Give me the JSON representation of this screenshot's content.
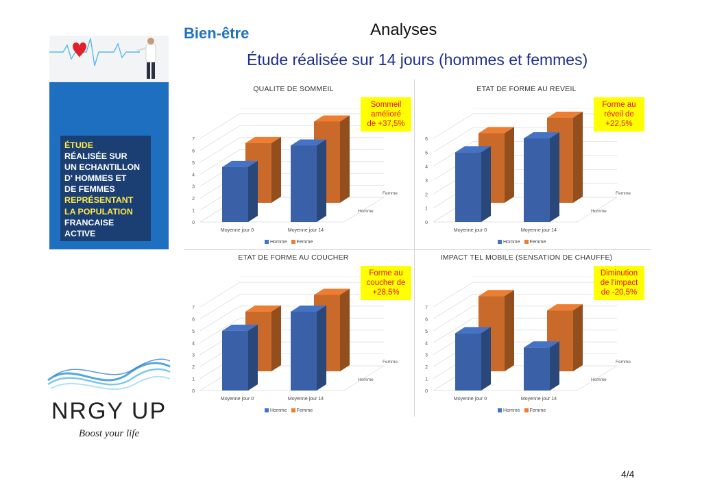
{
  "header": {
    "brand": "Bien-être",
    "title": "Analyses",
    "subtitle": "Étude réalisée sur 14 jours (hommes et femmes)"
  },
  "sidebar": {
    "lines": [
      {
        "text": "ÉTUDE",
        "color": "yellow"
      },
      {
        "text": "RÉALISÉE SUR",
        "color": "white"
      },
      {
        "text": "UN ECHANTILLON",
        "color": "white"
      },
      {
        "text": "D' HOMMES ET",
        "color": "white"
      },
      {
        "text": "DE FEMMES",
        "color": "white"
      },
      {
        "text": "REPRÉSENTANT",
        "color": "yellow"
      },
      {
        "text": "LA POPULATION",
        "color": "yellow"
      },
      {
        "text": "FRANCAISE",
        "color": "white"
      },
      {
        "text": "ACTIVE",
        "color": "white"
      }
    ],
    "banner_icons": [
      "heart-icon",
      "doctor-figure"
    ]
  },
  "logo": {
    "name": "NRGY UP",
    "tagline": "Boost your life"
  },
  "footer": {
    "page": "4/4"
  },
  "colors": {
    "homme": "#4472c4",
    "femme": "#ed7d31",
    "note_bg": "#ffff00",
    "note_text": "#e8121b",
    "accent": "#1f72c0"
  },
  "chart_data": [
    {
      "type": "bar",
      "title": "QUALITE DE SOMMEIL",
      "categories": [
        "Moyenne jour 0",
        "Moyenne jour 14"
      ],
      "series": [
        {
          "name": "Homme",
          "values": [
            4.6,
            6.4
          ]
        },
        {
          "name": "Femme",
          "values": [
            5.0,
            6.8
          ]
        }
      ],
      "ylim": [
        0,
        7
      ],
      "yticks": [
        "0",
        "1",
        "2",
        "3",
        "4",
        "5",
        "6",
        "7"
      ],
      "depth_labels": [
        "Femme",
        "Homme"
      ],
      "annotation": [
        "Sommeil",
        "amélioré",
        "de +37,5%"
      ],
      "legend_position": "bottom"
    },
    {
      "type": "bar",
      "title": "ETAT DE FORME AU REVEIL",
      "categories": [
        "Moyenne jour 0",
        "Moyenne jour 14"
      ],
      "series": [
        {
          "name": "Homme",
          "values": [
            5.0,
            6.0
          ]
        },
        {
          "name": "Femme",
          "values": [
            5.0,
            6.1
          ]
        }
      ],
      "ylim": [
        0,
        6
      ],
      "yticks": [
        "0",
        "1",
        "2",
        "3",
        "4",
        "5",
        "6"
      ],
      "depth_labels": [
        "Femme",
        "Homme"
      ],
      "annotation": [
        "Forme au",
        "réveil de",
        "+22,5%"
      ],
      "legend_position": "bottom"
    },
    {
      "type": "bar",
      "title": "ETAT DE FORME AU COUCHER",
      "categories": [
        "Moyenne jour 0",
        "Moyenne jour 14"
      ],
      "series": [
        {
          "name": "Homme",
          "values": [
            5.0,
            6.6
          ]
        },
        {
          "name": "Femme",
          "values": [
            5.0,
            6.4
          ]
        }
      ],
      "ylim": [
        0,
        7
      ],
      "yticks": [
        "0",
        "1",
        "2",
        "3",
        "4",
        "5",
        "6",
        "7"
      ],
      "depth_labels": [
        "Femme",
        "Homme"
      ],
      "annotation": [
        "Forme au",
        "coucher de",
        "+28,5%"
      ],
      "legend_position": "bottom"
    },
    {
      "type": "bar",
      "title": "IMPACT TEL MOBILE (SENSATION DE CHAUFFE)",
      "categories": [
        "Moyenne jour 0",
        "Moyenne jour 14"
      ],
      "series": [
        {
          "name": "Homme",
          "values": [
            4.8,
            3.6
          ]
        },
        {
          "name": "Femme",
          "values": [
            6.3,
            5.1
          ]
        }
      ],
      "ylim": [
        0,
        7
      ],
      "yticks": [
        "0",
        "1",
        "2",
        "3",
        "4",
        "5",
        "6",
        "7"
      ],
      "depth_labels": [
        "Femme",
        "Homme"
      ],
      "annotation": [
        "Diminution",
        "de l'impact",
        "de -20,5%"
      ],
      "legend_position": "bottom"
    }
  ]
}
